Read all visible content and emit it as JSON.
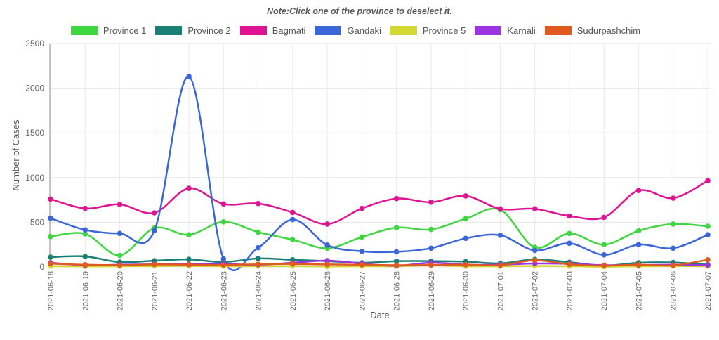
{
  "note": "Note:Click one of the province to deselect it.",
  "chart_data": {
    "type": "line",
    "title": "",
    "xlabel": "Date",
    "ylabel": "Number of Cases",
    "ylim": [
      0,
      2500
    ],
    "yticks": [
      0,
      500,
      1000,
      1500,
      2000,
      2500
    ],
    "grid": true,
    "legend_position": "top",
    "line_style": "smooth-with-dots",
    "x": [
      "2021-06-18",
      "2021-06-19",
      "2021-06-20",
      "2021-06-21",
      "2021-06-22",
      "2021-06-23",
      "2021-06-24",
      "2021-06-25",
      "2021-06-26",
      "2021-06-27",
      "2021-06-28",
      "2021-06-29",
      "2021-06-30",
      "2021-07-01",
      "2021-07-02",
      "2021-07-03",
      "2021-07-04",
      "2021-07-05",
      "2021-07-06",
      "2021-07-07"
    ],
    "series": [
      {
        "name": "Province 1",
        "color": "#3fd73f",
        "values": [
          340,
          370,
          130,
          435,
          360,
          505,
          390,
          305,
          210,
          335,
          440,
          420,
          540,
          640,
          220,
          375,
          250,
          405,
          480,
          455
        ]
      },
      {
        "name": "Province 2",
        "color": "#1a8076",
        "values": [
          110,
          118,
          55,
          70,
          85,
          55,
          95,
          80,
          65,
          47,
          65,
          65,
          60,
          40,
          84,
          53,
          15,
          47,
          50,
          26
        ]
      },
      {
        "name": "Bagmati",
        "color": "#e01493",
        "values": [
          760,
          655,
          700,
          605,
          880,
          705,
          710,
          610,
          480,
          655,
          765,
          725,
          795,
          650,
          650,
          570,
          555,
          855,
          770,
          965
        ]
      },
      {
        "name": "Gandaki",
        "color": "#3b66d9",
        "values": [
          545,
          415,
          375,
          405,
          2130,
          90,
          215,
          530,
          245,
          175,
          170,
          210,
          320,
          355,
          185,
          265,
          135,
          250,
          210,
          360
        ]
      },
      {
        "name": "Province 5",
        "color": "#d4d832",
        "values": [
          10,
          6,
          8,
          10,
          12,
          8,
          8,
          10,
          5,
          8,
          8,
          18,
          8,
          8,
          12,
          8,
          3,
          8,
          10,
          8
        ]
      },
      {
        "name": "Karnali",
        "color": "#9934e0",
        "values": [
          48,
          18,
          25,
          30,
          30,
          33,
          25,
          47,
          71,
          39,
          13,
          47,
          26,
          26,
          39,
          35,
          20,
          22,
          25,
          20
        ]
      },
      {
        "name": "Sudurpashchim",
        "color": "#e05a20",
        "values": [
          37,
          25,
          20,
          28,
          25,
          22,
          30,
          34,
          28,
          25,
          20,
          22,
          25,
          20,
          75,
          30,
          15,
          25,
          18,
          80
        ]
      }
    ]
  }
}
